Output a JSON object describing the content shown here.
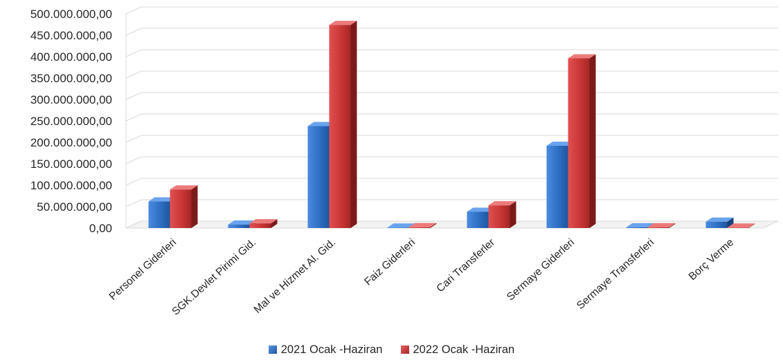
{
  "chart_data": {
    "type": "bar",
    "title": "",
    "xlabel": "",
    "ylabel": "",
    "categories": [
      "Personel Giderleri",
      "SGK.Devlet Pirimi Gid.",
      "Mal ve Hizmet Al. Gid.",
      "Faiz Giderleri",
      "Cari Transferler",
      "Sermaye Giderleri",
      "Sermaye Transferleri",
      "Borç Verme"
    ],
    "series": [
      {
        "name": "2021 Ocak -Haziran",
        "color": "#2e6fc2",
        "values": [
          62000000,
          8000000,
          238000000,
          1000000,
          38000000,
          192000000,
          500000,
          15000000
        ]
      },
      {
        "name": "2022 Ocak -Haziran",
        "color": "#c93636",
        "values": [
          90000000,
          11000000,
          474000000,
          2000000,
          53000000,
          396000000,
          500000,
          1000000
        ]
      }
    ],
    "ylim": [
      0,
      500000000
    ],
    "yticks": [
      "0,00",
      "50.000.000,00",
      "100.000.000,00",
      "150.000.000,00",
      "200.000.000,00",
      "250.000.000,00",
      "300.000.000,00",
      "350.000.000,00",
      "400.000.000,00",
      "450.000.000,00",
      "500.000.000,00"
    ],
    "grid": true,
    "legend_position": "bottom"
  }
}
